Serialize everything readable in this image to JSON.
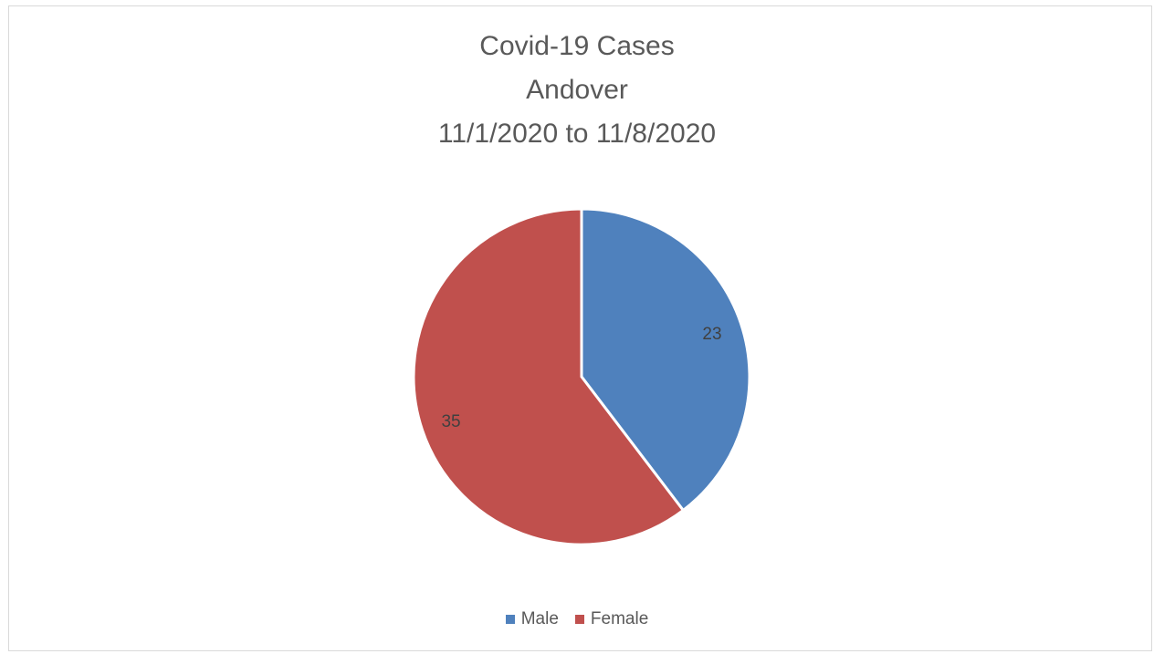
{
  "chart_data": {
    "type": "pie",
    "title_lines": [
      "Covid-19 Cases",
      "Andover",
      "11/1/2020 to 11/8/2020"
    ],
    "categories": [
      "Male",
      "Female"
    ],
    "values": [
      23,
      35
    ],
    "colors": [
      "#4F81BD",
      "#C0504D"
    ],
    "data_labels": [
      "23",
      "35"
    ],
    "legend_position": "bottom"
  }
}
